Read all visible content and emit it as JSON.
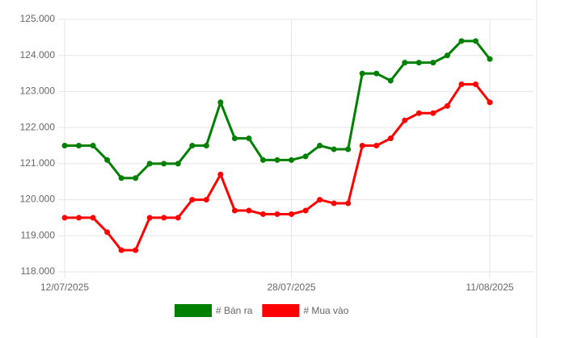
{
  "chart_data": {
    "type": "line",
    "categories": [
      "12/07/2025",
      null,
      null,
      null,
      null,
      null,
      null,
      null,
      null,
      null,
      null,
      null,
      null,
      null,
      null,
      null,
      "28/07/2025",
      null,
      null,
      null,
      null,
      null,
      null,
      null,
      null,
      null,
      null,
      null,
      null,
      null,
      "11/08/2025"
    ],
    "series": [
      {
        "name": "# Bán ra",
        "color": "#008000",
        "values": [
          121500,
          121500,
          121500,
          121100,
          120600,
          120600,
          121000,
          121000,
          121000,
          121500,
          121500,
          122700,
          121700,
          121700,
          121100,
          121100,
          121100,
          121200,
          121500,
          121400,
          121400,
          123500,
          123500,
          123300,
          123800,
          123800,
          123800,
          124000,
          124400,
          124400,
          123900
        ]
      },
      {
        "name": "# Mua vào",
        "color": "#ff0000",
        "values": [
          119500,
          119500,
          119500,
          119100,
          118600,
          118600,
          119500,
          119500,
          119500,
          120000,
          120000,
          120700,
          119700,
          119700,
          119600,
          119600,
          119600,
          119700,
          120000,
          119900,
          119900,
          121500,
          121500,
          121700,
          122200,
          122400,
          122400,
          122600,
          123200,
          123200,
          122700
        ]
      }
    ],
    "ylim": [
      118000,
      125000
    ],
    "yticks": [
      {
        "value": 118000,
        "label": "118.000"
      },
      {
        "value": 119000,
        "label": "119.000"
      },
      {
        "value": 120000,
        "label": "120.000"
      },
      {
        "value": 121000,
        "label": "121.000"
      },
      {
        "value": 122000,
        "label": "122.000"
      },
      {
        "value": 123000,
        "label": "123.000"
      },
      {
        "value": 124000,
        "label": "124.000"
      },
      {
        "value": 125000,
        "label": "125.000"
      }
    ],
    "grid": true,
    "legend": "bottom"
  }
}
